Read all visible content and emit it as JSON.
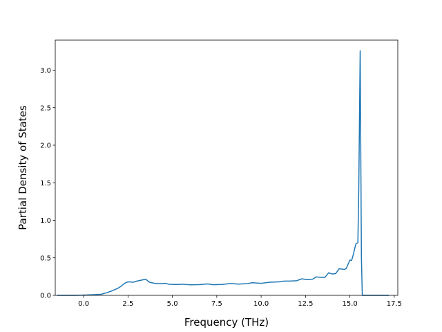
{
  "chart_data": {
    "type": "line",
    "title": "",
    "xlabel": "Frequency (THz)",
    "ylabel": "Partial Density of States",
    "xlim": [
      -1.6,
      17.7
    ],
    "ylim": [
      0.0,
      3.4
    ],
    "xticks": [
      0.0,
      2.5,
      5.0,
      7.5,
      10.0,
      12.5,
      15.0,
      17.5
    ],
    "xtick_labels": [
      "0.0",
      "2.5",
      "5.0",
      "7.5",
      "10.0",
      "12.5",
      "15.0",
      "17.5"
    ],
    "yticks": [
      0.0,
      0.5,
      1.0,
      1.5,
      2.0,
      2.5,
      3.0
    ],
    "ytick_labels": [
      "0.0",
      "0.5",
      "1.0",
      "1.5",
      "2.0",
      "2.5",
      "3.0"
    ],
    "grid": false,
    "legend": "none",
    "colors": {
      "line": "#1f77b4"
    },
    "series": [
      {
        "x": [
          -1.5,
          -0.5,
          0.0,
          0.5,
          1.0,
          1.3,
          1.6,
          1.9,
          2.1,
          2.3,
          2.5,
          2.8,
          3.0,
          3.3,
          3.5,
          3.7,
          4.0,
          4.3,
          4.6,
          4.8,
          5.2,
          5.6,
          6.0,
          6.5,
          7.0,
          7.3,
          7.8,
          8.3,
          8.7,
          9.2,
          9.5,
          10.0,
          10.5,
          11.0,
          11.3,
          11.6,
          12.0,
          12.3,
          12.6,
          12.9,
          13.1,
          13.4,
          13.6,
          13.8,
          14.0,
          14.2,
          14.4,
          14.7,
          14.8,
          15.0,
          15.1,
          15.2,
          15.3,
          15.35,
          15.45,
          15.5,
          15.58,
          15.65,
          15.7,
          16.0,
          16.5,
          17.2
        ],
        "y": [
          0.0,
          0.0,
          0.003,
          0.008,
          0.015,
          0.035,
          0.06,
          0.09,
          0.12,
          0.16,
          0.18,
          0.175,
          0.19,
          0.205,
          0.215,
          0.175,
          0.16,
          0.155,
          0.16,
          0.148,
          0.145,
          0.148,
          0.14,
          0.143,
          0.152,
          0.142,
          0.145,
          0.158,
          0.15,
          0.155,
          0.168,
          0.16,
          0.175,
          0.18,
          0.19,
          0.19,
          0.195,
          0.22,
          0.21,
          0.215,
          0.245,
          0.24,
          0.24,
          0.3,
          0.285,
          0.29,
          0.355,
          0.345,
          0.36,
          0.47,
          0.465,
          0.55,
          0.65,
          0.69,
          0.7,
          1.4,
          3.26,
          0.5,
          0.0,
          0.0,
          0.0,
          0.0
        ]
      }
    ]
  }
}
